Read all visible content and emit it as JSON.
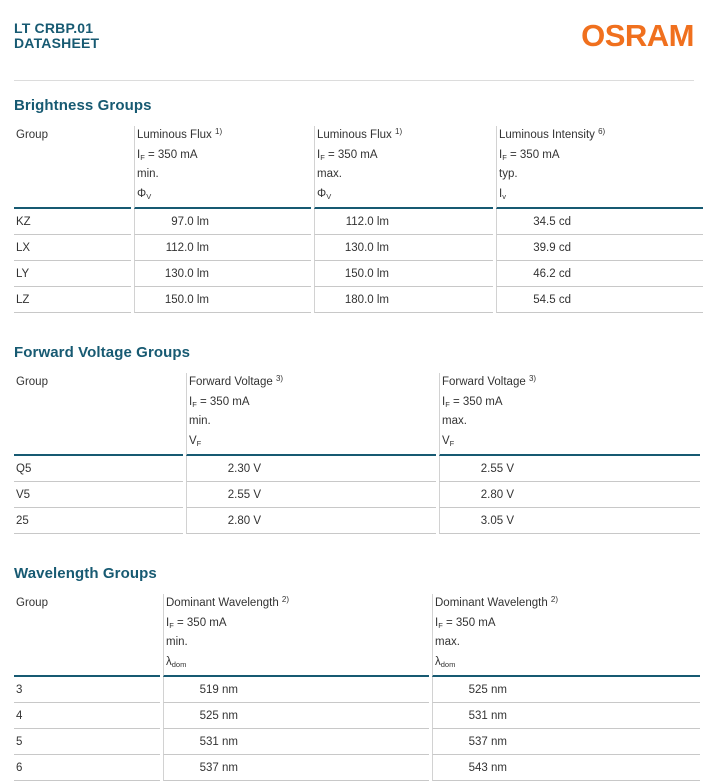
{
  "page": {
    "product": "LT CRBP.01",
    "doc_type": "DATASHEET",
    "brand": "OSRAM",
    "colors": {
      "heading_teal": "#175A72",
      "brand_orange": "#F0701E",
      "rule_dark": "#175A72",
      "rule_light": "#C8C8C8"
    }
  },
  "tables": [
    {
      "title": "Brightness Groups",
      "group_header": "Group",
      "columns": [
        {
          "name": "Luminous Flux",
          "footnote": "1)",
          "condition": {
            "base": "I",
            "sub": "F",
            "value": "= 350 mA"
          },
          "limit": "min.",
          "symbol": {
            "base": "Φ",
            "sub": "V"
          }
        },
        {
          "name": "Luminous Flux",
          "footnote": "1)",
          "condition": {
            "base": "I",
            "sub": "F",
            "value": "= 350 mA"
          },
          "limit": "max.",
          "symbol": {
            "base": "Φ",
            "sub": "V"
          }
        },
        {
          "name": "Luminous Intensity",
          "footnote": "6)",
          "condition": {
            "base": "I",
            "sub": "F",
            "value": "= 350 mA"
          },
          "limit": "typ.",
          "symbol": {
            "base": "I",
            "sub": "v"
          }
        }
      ],
      "rows": [
        {
          "group": "KZ",
          "values": [
            "97.0 lm",
            "112.0 lm",
            "34.5 cd"
          ]
        },
        {
          "group": "LX",
          "values": [
            "112.0 lm",
            "130.0 lm",
            "39.9 cd"
          ]
        },
        {
          "group": "LY",
          "values": [
            "130.0 lm",
            "150.0 lm",
            "46.2 cd"
          ]
        },
        {
          "group": "LZ",
          "values": [
            "150.0 lm",
            "180.0 lm",
            "54.5 cd"
          ]
        }
      ]
    },
    {
      "title": "Forward Voltage Groups",
      "group_header": "Group",
      "columns": [
        {
          "name": "Forward Voltage",
          "footnote": "3)",
          "condition": {
            "base": "I",
            "sub": "F",
            "value": "= 350 mA"
          },
          "limit": "min.",
          "symbol": {
            "base": "V",
            "sub": "F"
          }
        },
        {
          "name": "Forward Voltage",
          "footnote": "3)",
          "condition": {
            "base": "I",
            "sub": "F",
            "value": "= 350 mA"
          },
          "limit": "max.",
          "symbol": {
            "base": "V",
            "sub": "F"
          }
        }
      ],
      "rows": [
        {
          "group": "Q5",
          "values": [
            "2.30 V",
            "2.55 V"
          ]
        },
        {
          "group": "V5",
          "values": [
            "2.55 V",
            "2.80 V"
          ]
        },
        {
          "group": "25",
          "values": [
            "2.80 V",
            "3.05 V"
          ]
        }
      ]
    },
    {
      "title": "Wavelength Groups",
      "group_header": "Group",
      "columns": [
        {
          "name": "Dominant Wavelength",
          "footnote": "2)",
          "condition": {
            "base": "I",
            "sub": "F",
            "value": "= 350 mA"
          },
          "limit": "min.",
          "symbol": {
            "base": "λ",
            "sub": "dom"
          }
        },
        {
          "name": "Dominant Wavelength",
          "footnote": "2)",
          "condition": {
            "base": "I",
            "sub": "F",
            "value": "= 350 mA"
          },
          "limit": "max.",
          "symbol": {
            "base": "λ",
            "sub": "dom"
          }
        }
      ],
      "rows": [
        {
          "group": "3",
          "values": [
            "519 nm",
            "525 nm"
          ]
        },
        {
          "group": "4",
          "values": [
            "525 nm",
            "531 nm"
          ]
        },
        {
          "group": "5",
          "values": [
            "531 nm",
            "537 nm"
          ]
        },
        {
          "group": "6",
          "values": [
            "537 nm",
            "543 nm"
          ]
        }
      ]
    }
  ]
}
